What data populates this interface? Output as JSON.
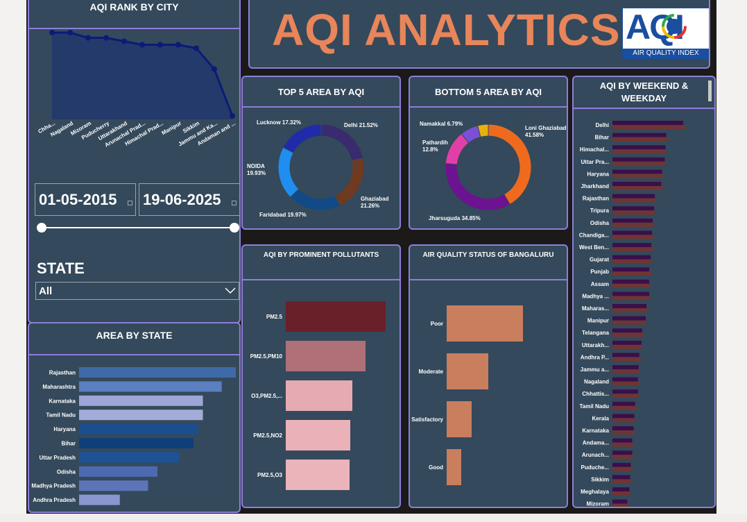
{
  "dashboard": {
    "title": "AQI ANALYTICS",
    "logo": {
      "big": "AQI",
      "caption": "AIR QUALITY INDEX"
    },
    "colors": {
      "panel": "#34495b",
      "border": "#8d7fd9",
      "title": "#e8855a",
      "background": "#1b1a19"
    }
  },
  "filters": {
    "start_date": "01-05-2015",
    "end_date": "19-06-2025",
    "state_label": "STATE",
    "state_value": "All"
  },
  "charts": {
    "rank_by_city": {
      "title": "AQI RANK BY CITY",
      "type": "area",
      "color": "#1a2a6c",
      "categories": [
        "Chhattisgarh",
        "Nagaland",
        "Mizoram",
        "Puducherry",
        "Uttarakhand",
        "Arunachal Pradesh",
        "Himachal Pradesh",
        "Manipur",
        "Sikkim",
        "Jammu and Kashmir",
        "Andaman and Nicobar"
      ],
      "tick_labels": [
        "Chha...",
        "Nagaland",
        "Mizoram",
        "Puducherry",
        "Uttarakhand",
        "Arunachal Prad...",
        "Himachal Prad...",
        "Manipur",
        "Sikkim",
        "Jammu and Ka...",
        "Andaman and ..."
      ],
      "values": [
        100,
        100,
        94,
        94,
        90,
        86,
        86,
        86,
        82,
        58,
        4
      ]
    },
    "top5_area": {
      "title": "TOP 5 AREA BY AQI",
      "type": "pie",
      "slices": [
        {
          "name": "Delhi",
          "value": 21.52,
          "label": "Delhi 21.52%",
          "color": "#3a2a6e"
        },
        {
          "name": "Ghaziabad",
          "value": 21.26,
          "label": "Ghaziabad 21.26%",
          "color": "#6e3a22"
        },
        {
          "name": "Faridabad",
          "value": 19.97,
          "label": "Faridabad 19.97%",
          "color": "#114a86"
        },
        {
          "name": "NOIDA",
          "value": 19.93,
          "label": "NOIDA 19.93%",
          "color": "#1f8ef0"
        },
        {
          "name": "Lucknow",
          "value": 17.32,
          "label": "Lucknow 17.32%",
          "color": "#1f2ba8"
        }
      ]
    },
    "bottom5_area": {
      "title": "BOTTOM 5 AREA BY AQI",
      "type": "pie",
      "slices": [
        {
          "name": "Loni Ghaziabad",
          "value": 41.58,
          "label": "Loni Ghaziabad 41.58%",
          "color": "#f06a1e"
        },
        {
          "name": "Jharsuguda",
          "value": 34.85,
          "label": "Jharsuguda 34.85%",
          "color": "#6d1290"
        },
        {
          "name": "Pathardih",
          "value": 12.8,
          "label": "Pathardih 12.8%",
          "color": "#e03fa8"
        },
        {
          "name": "Namakkal",
          "value": 6.79,
          "label": "Namakkal 6.79%",
          "color": "#7b4fd6"
        },
        {
          "name": "Other",
          "value": 3.98,
          "label": "",
          "color": "#e8b20c"
        }
      ]
    },
    "weekend_weekday": {
      "title": "AQI BY WEEKEND & WEEKDAY",
      "type": "bar",
      "categories": [
        "Delhi",
        "Bihar",
        "Himachal...",
        "Uttar Pra...",
        "Haryana",
        "Jharkhand",
        "Rajasthan",
        "Tripura",
        "Odisha",
        "Chandiga...",
        "West Ben...",
        "Gujarat",
        "Punjab",
        "Assam",
        "Madhya ...",
        "Maharas...",
        "Manipur",
        "Telangana",
        "Uttarakh...",
        "Andhra P...",
        "Jammu a...",
        "Nagaland",
        "Chhattis...",
        "Tamil Nadu",
        "Kerala",
        "Karnataka",
        "Andama...",
        "Arunach...",
        "Puduche...",
        "Sikkim",
        "Meghalaya",
        "Mizoram"
      ],
      "series": [
        {
          "color": "#3a0f4a",
          "values": [
            100,
            76,
            75,
            74,
            70,
            69,
            60,
            59,
            57,
            56,
            55,
            54,
            52,
            52,
            52,
            48,
            47,
            42,
            41,
            38,
            37,
            36,
            36,
            32,
            31,
            30,
            28,
            28,
            26,
            25,
            24,
            21
          ]
        },
        {
          "color": "#6e3535",
          "values": [
            104,
            79,
            76,
            75,
            72,
            71,
            62,
            60,
            59,
            58,
            57,
            55,
            55,
            53,
            53,
            50,
            48,
            44,
            42,
            40,
            38,
            38,
            37,
            34,
            32,
            31,
            30,
            29,
            28,
            27,
            25,
            23
          ]
        }
      ]
    },
    "area_by_state": {
      "title": "AREA BY STATE",
      "type": "bar",
      "categories": [
        "Rajasthan",
        "Maharashtra",
        "Karnataka",
        "Tamil Nadu",
        "Haryana",
        "Bihar",
        "Uttar Pradesh",
        "Odisha",
        "Madhya Pradesh",
        "Andhra Pradesh"
      ],
      "values": [
        100,
        91,
        79,
        79,
        76,
        73,
        64,
        50,
        44,
        26
      ],
      "colors": [
        "#3f6aa8",
        "#5b7fc0",
        "#9ea6d8",
        "#a3abd9",
        "#1a4e8c",
        "#0f3f7a",
        "#1f5294",
        "#4d6ab0",
        "#5d75b8",
        "#8a96d0"
      ]
    },
    "pollutants": {
      "title": "AQI BY PROMINENT POLLUTANTS",
      "type": "bar",
      "categories": [
        "PM2.5",
        "PM2.5,PM10",
        "O3,PM2.5,...",
        "PM2.5,NO2",
        "PM2.5,O3"
      ],
      "values": [
        144,
        115,
        96,
        93,
        92
      ],
      "colors": [
        "#6a2028",
        "#b07078",
        "#e6aab2",
        "#eab2b8",
        "#eab4ba"
      ]
    },
    "bangaluru": {
      "title": "AIR QUALITY STATUS OF BANGALURU",
      "type": "bar",
      "color": "#c97e5e",
      "categories": [
        "Poor",
        "Moderate",
        "Satisfactory",
        "Good"
      ],
      "values": [
        110,
        60,
        36,
        21
      ]
    }
  }
}
